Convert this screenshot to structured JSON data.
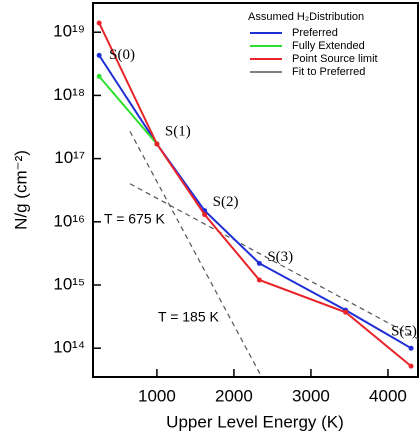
{
  "chart_data": {
    "type": "line",
    "log_y": true,
    "x_label": "Upper Level Energy (K)",
    "y_label": "N/g (cm⁻²)",
    "legend_title": "Assumed H₂Distribution",
    "legend_position": "upper right",
    "x": [
      250,
      1000,
      1620,
      2330,
      3450,
      4300
    ],
    "labels": [
      "S(0)",
      "S(1)",
      "S(2)",
      "S(3)",
      null,
      "S(5)"
    ],
    "series": [
      {
        "name": "Preferred",
        "color": "#1f2fd6",
        "values": [
          4.3e+18,
          1.7e+17,
          1.5e+16,
          2200000000000000.0,
          400000000000000.0,
          100000000000000.0
        ]
      },
      {
        "name": "Fully Extended",
        "color": "#2ee02e",
        "values": [
          2e+18,
          1.7e+17,
          null,
          null,
          null,
          null
        ]
      },
      {
        "name": "Point Source limit",
        "color": "#e8232a",
        "values": [
          1.4e+19,
          1.7e+17,
          1.3e+16,
          1200000000000000.0,
          370000000000000.0,
          52000000000000.0
        ]
      }
    ],
    "fit_legend": "Fit to Preferred",
    "fits": [
      {
        "label": "T = 675 K",
        "x": [
          650,
          4390
        ],
        "values": [
          4e+16,
          140000000000000.0
        ]
      },
      {
        "label": "T = 185 K",
        "x": [
          650,
          2360
        ],
        "values": [
          2.7e+17,
          35000000000000.0
        ]
      }
    ],
    "xlim": [
      170,
      4390
    ],
    "ylim": [
      35000000000000.0,
      2.9e+19
    ],
    "xticks": [
      1000,
      2000,
      3000,
      4000
    ],
    "yticks": [
      {
        "value": 100000000000000.0,
        "label": "10¹⁴"
      },
      {
        "value": 1000000000000000.0,
        "label": "10¹⁵"
      },
      {
        "value": 1e+16,
        "label": "10¹⁶"
      },
      {
        "value": 1e+17,
        "label": "10¹⁷"
      },
      {
        "value": 1e+18,
        "label": "10¹⁸"
      },
      {
        "value": 1e+19,
        "label": "10¹⁹"
      }
    ]
  }
}
